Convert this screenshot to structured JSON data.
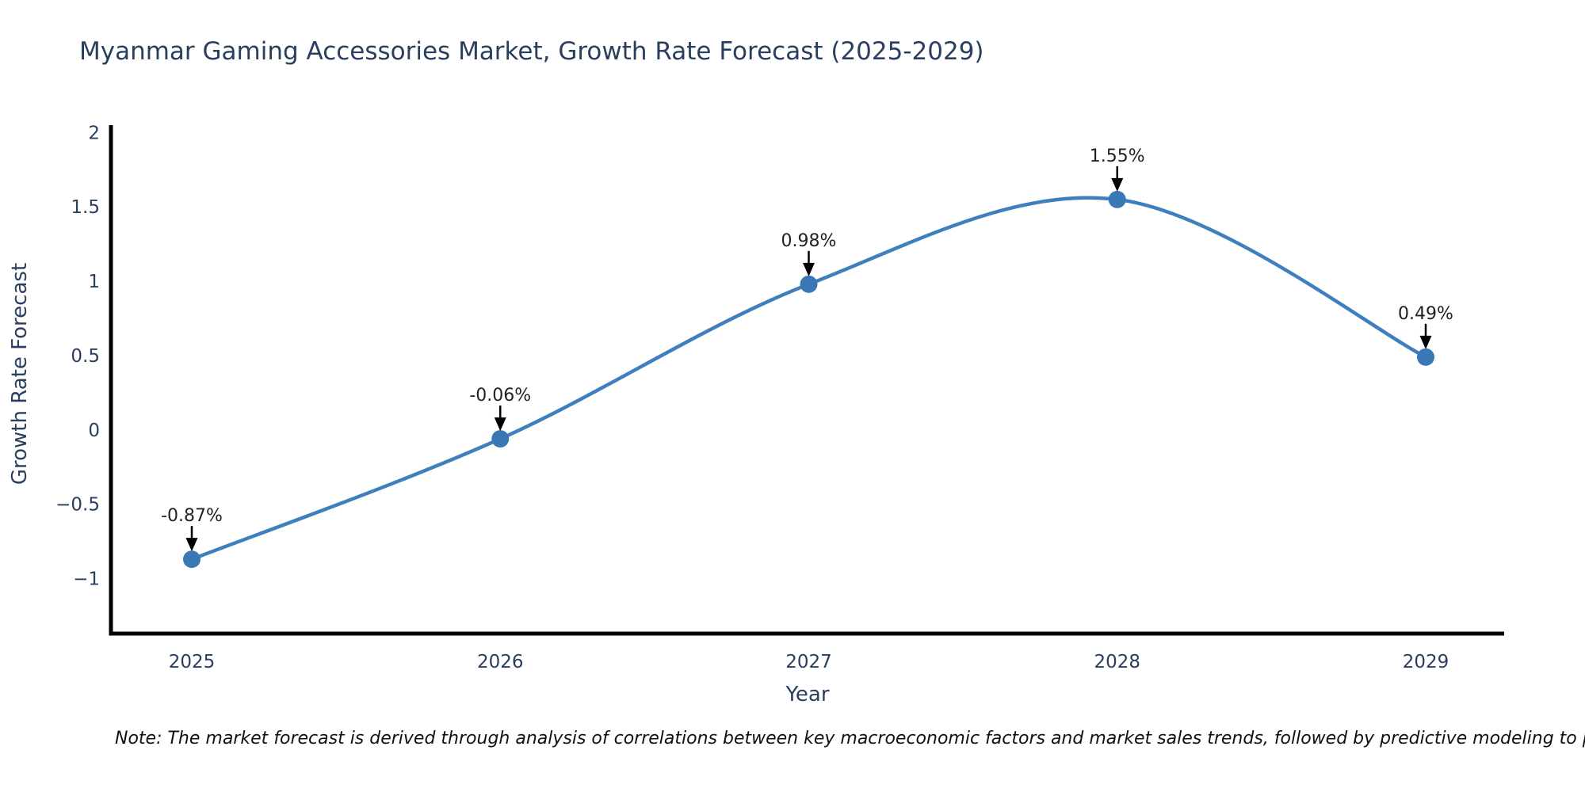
{
  "figure": {
    "note": "Note: The market forecast is derived through analysis of correlations between key macroeconomic factors and market sales trends, followed by predictive modeling to project future sa"
  },
  "chart_data": {
    "type": "line",
    "curve": "spline",
    "title": "Myanmar Gaming Accessories Market, Growth Rate Forecast (2025-2029)",
    "xlabel": "Year",
    "ylabel": "Growth Rate Forecast",
    "categories": [
      "2025",
      "2026",
      "2027",
      "2028",
      "2029"
    ],
    "series": [
      {
        "name": "Growth Rate Forecast",
        "values": [
          -0.87,
          -0.06,
          0.98,
          1.55,
          0.49
        ]
      }
    ],
    "point_labels": [
      "-0.87%",
      "-0.06%",
      "0.98%",
      "1.55%",
      "0.49%"
    ],
    "y_ticks": [
      2,
      1.5,
      1,
      0.5,
      0,
      -0.5,
      -1
    ],
    "y_tick_labels": [
      "2",
      "1.5",
      "1",
      "0.5",
      "0",
      "−0.5",
      "−1"
    ],
    "ylim": [
      -1.37,
      2.05
    ],
    "grid": false,
    "legend": false,
    "marker_size": 11,
    "colors": {
      "line": "#3f7fbe",
      "marker": "#3a78b5",
      "axis": "#000000",
      "tick_text": "#2a3f5f",
      "annotation_text": "#222222",
      "arrow": "#000000"
    }
  }
}
